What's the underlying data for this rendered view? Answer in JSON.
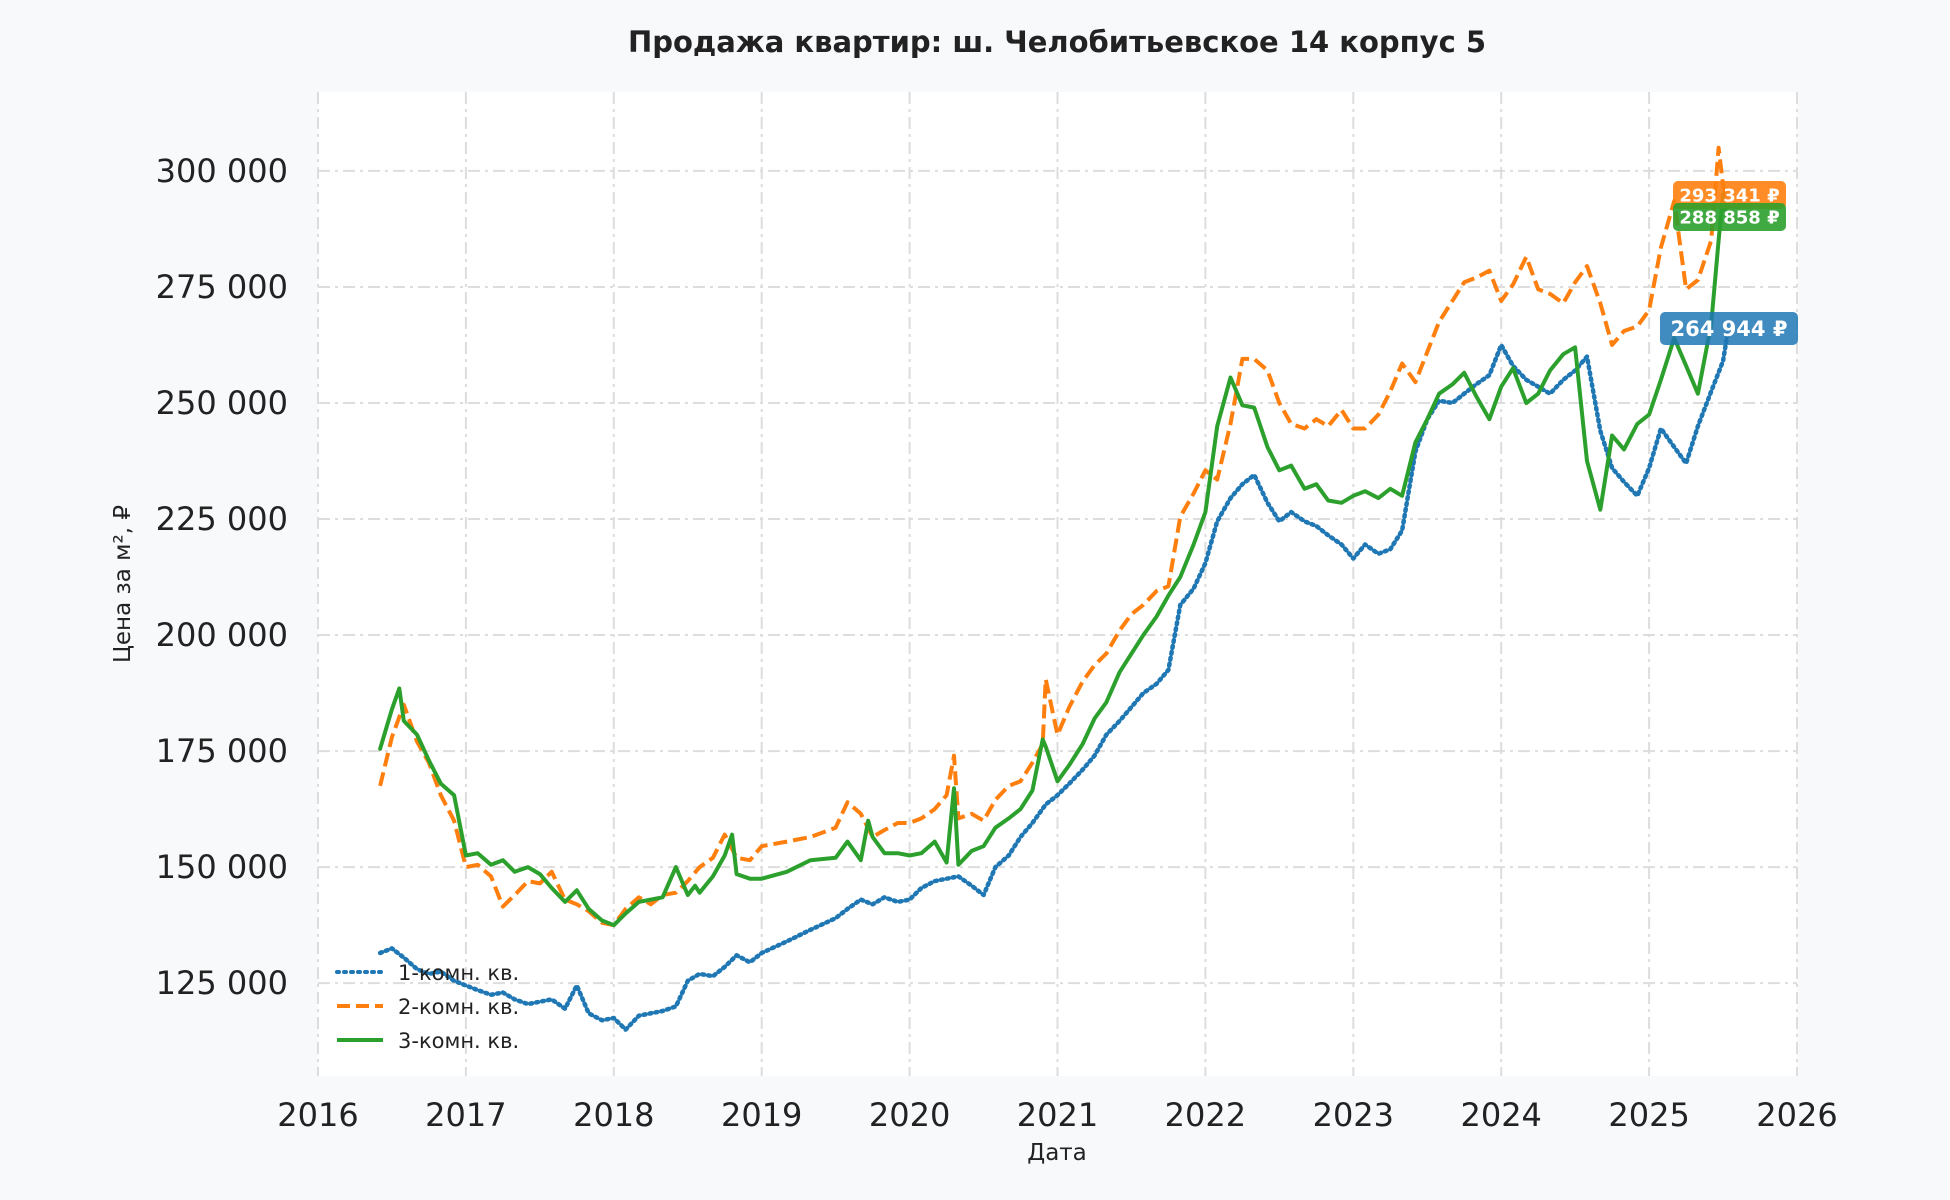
{
  "chart_data": {
    "type": "line",
    "title": "Продажа квартир: ш. Челобитьевское 14 корпус 5",
    "xlabel": "Дата",
    "ylabel": "Цена за м², ₽",
    "xlim": [
      2016,
      2026
    ],
    "ylim": [
      105000,
      317000
    ],
    "x_ticks": [
      2016,
      2017,
      2018,
      2019,
      2020,
      2021,
      2022,
      2023,
      2024,
      2025,
      2026
    ],
    "x_tick_labels": [
      "2016",
      "2017",
      "2018",
      "2019",
      "2020",
      "2021",
      "2022",
      "2023",
      "2024",
      "2025",
      "2026"
    ],
    "y_ticks": [
      125000,
      150000,
      175000,
      200000,
      225000,
      250000,
      275000,
      300000
    ],
    "y_tick_labels": [
      "125 000",
      "150 000",
      "175 000",
      "200 000",
      "225 000",
      "250 000",
      "275 000",
      "300 000"
    ],
    "grid": true,
    "legend_position": "bottom-left",
    "series": [
      {
        "name": "1-комн. кв.",
        "color": "#1f77b4",
        "line_style": "dotted",
        "x": [
          2016.42,
          2016.5,
          2016.58,
          2016.67,
          2016.75,
          2016.83,
          2016.92,
          2017.0,
          2017.08,
          2017.17,
          2017.25,
          2017.33,
          2017.42,
          2017.5,
          2017.58,
          2017.67,
          2017.75,
          2017.83,
          2017.92,
          2018.0,
          2018.08,
          2018.17,
          2018.25,
          2018.33,
          2018.42,
          2018.5,
          2018.58,
          2018.67,
          2018.75,
          2018.83,
          2018.92,
          2019.0,
          2019.17,
          2019.33,
          2019.5,
          2019.58,
          2019.67,
          2019.75,
          2019.83,
          2019.92,
          2020.0,
          2020.08,
          2020.17,
          2020.25,
          2020.33,
          2020.42,
          2020.5,
          2020.58,
          2020.67,
          2020.75,
          2020.83,
          2020.92,
          2021.0,
          2021.08,
          2021.17,
          2021.25,
          2021.33,
          2021.42,
          2021.5,
          2021.58,
          2021.67,
          2021.75,
          2021.83,
          2021.92,
          2022.0,
          2022.08,
          2022.17,
          2022.25,
          2022.33,
          2022.42,
          2022.5,
          2022.58,
          2022.67,
          2022.75,
          2022.83,
          2022.92,
          2023.0,
          2023.08,
          2023.17,
          2023.25,
          2023.33,
          2023.42,
          2023.5,
          2023.58,
          2023.67,
          2023.75,
          2023.83,
          2023.92,
          2024.0,
          2024.08,
          2024.17,
          2024.25,
          2024.33,
          2024.42,
          2024.5,
          2024.58,
          2024.67,
          2024.75,
          2024.83,
          2024.92,
          2025.0,
          2025.08,
          2025.17,
          2025.25,
          2025.33,
          2025.42,
          2025.5,
          2025.53
        ],
        "y": [
          131500,
          132500,
          130500,
          128000,
          127000,
          127500,
          125500,
          124500,
          123500,
          122500,
          123000,
          121500,
          120500,
          121000,
          121500,
          119500,
          124500,
          118500,
          117000,
          117500,
          115000,
          118000,
          118500,
          119000,
          120000,
          125500,
          127000,
          126500,
          128500,
          131000,
          129500,
          131500,
          134000,
          136500,
          139000,
          141000,
          143000,
          142000,
          143500,
          142500,
          143000,
          145500,
          147000,
          147500,
          148000,
          146000,
          144000,
          150000,
          152500,
          156500,
          159500,
          163500,
          165500,
          168000,
          171000,
          174000,
          178500,
          181500,
          184500,
          187500,
          189500,
          192500,
          206500,
          210000,
          215500,
          224500,
          229500,
          232500,
          234500,
          228500,
          224500,
          226500,
          224500,
          223500,
          221500,
          219500,
          216500,
          219500,
          217500,
          218500,
          222500,
          239500,
          246500,
          250500,
          250000,
          252000,
          254000,
          256000,
          262500,
          258000,
          255000,
          253500,
          252000,
          255000,
          257000,
          260000,
          244000,
          236000,
          233000,
          230000,
          236000,
          244500,
          240500,
          237000,
          245000,
          252500,
          259000,
          264944
        ]
      },
      {
        "name": "2-комн. кв.",
        "color": "#ff7f0e",
        "line_style": "dashed",
        "x": [
          2016.42,
          2016.5,
          2016.58,
          2016.67,
          2016.75,
          2016.83,
          2016.92,
          2017.0,
          2017.08,
          2017.17,
          2017.25,
          2017.33,
          2017.42,
          2017.5,
          2017.58,
          2017.67,
          2017.75,
          2017.83,
          2017.92,
          2018.0,
          2018.08,
          2018.17,
          2018.25,
          2018.33,
          2018.42,
          2018.5,
          2018.58,
          2018.67,
          2018.75,
          2018.83,
          2018.92,
          2019.0,
          2019.17,
          2019.33,
          2019.5,
          2019.58,
          2019.67,
          2019.75,
          2019.83,
          2019.92,
          2020.0,
          2020.08,
          2020.17,
          2020.25,
          2020.3,
          2020.33,
          2020.42,
          2020.5,
          2020.58,
          2020.67,
          2020.75,
          2020.83,
          2020.9,
          2020.92,
          2021.0,
          2021.08,
          2021.17,
          2021.25,
          2021.33,
          2021.42,
          2021.5,
          2021.58,
          2021.67,
          2021.75,
          2021.83,
          2021.92,
          2022.0,
          2022.08,
          2022.17,
          2022.25,
          2022.33,
          2022.42,
          2022.5,
          2022.58,
          2022.67,
          2022.75,
          2022.83,
          2022.92,
          2023.0,
          2023.08,
          2023.17,
          2023.25,
          2023.33,
          2023.42,
          2023.5,
          2023.58,
          2023.67,
          2023.75,
          2023.83,
          2023.92,
          2024.0,
          2024.08,
          2024.17,
          2024.25,
          2024.33,
          2024.42,
          2024.5,
          2024.58,
          2024.67,
          2024.75,
          2024.83,
          2024.92,
          2025.0,
          2025.08,
          2025.17,
          2025.25,
          2025.33,
          2025.42,
          2025.47,
          2025.5,
          2025.53
        ],
        "y": [
          167500,
          178000,
          185000,
          177000,
          172500,
          165500,
          160000,
          150000,
          150500,
          148000,
          141500,
          144000,
          147000,
          146500,
          149000,
          143000,
          142000,
          140500,
          138000,
          137500,
          141000,
          143500,
          142000,
          144000,
          144500,
          147000,
          150000,
          152000,
          157000,
          152000,
          151500,
          154500,
          155500,
          156500,
          158500,
          164000,
          161500,
          156500,
          158000,
          159500,
          159500,
          160500,
          162500,
          165500,
          174000,
          160500,
          161500,
          160000,
          164500,
          167500,
          168500,
          172500,
          176500,
          190500,
          178500,
          184500,
          190000,
          193500,
          196000,
          201000,
          204500,
          206500,
          209500,
          210500,
          225500,
          230500,
          235500,
          233500,
          245500,
          259500,
          259500,
          257000,
          250000,
          245500,
          244500,
          246500,
          245000,
          248500,
          244500,
          244500,
          247500,
          252500,
          258500,
          254500,
          261000,
          267500,
          272000,
          276000,
          277000,
          278500,
          272000,
          275500,
          281500,
          274500,
          273500,
          271500,
          276000,
          279500,
          271500,
          262500,
          265500,
          266500,
          270000,
          283500,
          293500,
          274500,
          276500,
          285000,
          305000,
          297000,
          293341
        ]
      },
      {
        "name": "3-комн. кв.",
        "color": "#2ca02c",
        "line_style": "solid",
        "x": [
          2016.42,
          2016.5,
          2016.55,
          2016.58,
          2016.67,
          2016.75,
          2016.83,
          2016.92,
          2017.0,
          2017.08,
          2017.17,
          2017.25,
          2017.33,
          2017.42,
          2017.5,
          2017.58,
          2017.67,
          2017.75,
          2017.83,
          2017.92,
          2018.0,
          2018.08,
          2018.17,
          2018.25,
          2018.33,
          2018.42,
          2018.5,
          2018.55,
          2018.58,
          2018.67,
          2018.75,
          2018.8,
          2018.83,
          2018.92,
          2019.0,
          2019.17,
          2019.33,
          2019.5,
          2019.58,
          2019.67,
          2019.72,
          2019.75,
          2019.83,
          2019.92,
          2020.0,
          2020.08,
          2020.17,
          2020.25,
          2020.3,
          2020.33,
          2020.42,
          2020.5,
          2020.58,
          2020.67,
          2020.75,
          2020.83,
          2020.9,
          2020.92,
          2021.0,
          2021.08,
          2021.17,
          2021.25,
          2021.33,
          2021.42,
          2021.5,
          2021.58,
          2021.67,
          2021.75,
          2021.83,
          2021.92,
          2022.0,
          2022.08,
          2022.17,
          2022.25,
          2022.33,
          2022.42,
          2022.5,
          2022.58,
          2022.67,
          2022.75,
          2022.83,
          2022.92,
          2023.0,
          2023.08,
          2023.17,
          2023.25,
          2023.33,
          2023.42,
          2023.5,
          2023.58,
          2023.67,
          2023.75,
          2023.83,
          2023.92,
          2024.0,
          2024.08,
          2024.17,
          2024.25,
          2024.33,
          2024.42,
          2024.5,
          2024.58,
          2024.67,
          2024.75,
          2024.83,
          2024.92,
          2025.0,
          2025.08,
          2025.17,
          2025.25,
          2025.33,
          2025.42,
          2025.47,
          2025.5,
          2025.53
        ],
        "y": [
          175500,
          184000,
          188500,
          181500,
          178500,
          173000,
          168000,
          165500,
          152500,
          153000,
          150500,
          151500,
          149000,
          150000,
          148500,
          145500,
          142500,
          145000,
          141000,
          138500,
          137500,
          140000,
          142500,
          143000,
          143500,
          150000,
          144000,
          146000,
          144500,
          148000,
          152500,
          157000,
          148500,
          147500,
          147500,
          149000,
          151500,
          152000,
          155500,
          151500,
          160000,
          156500,
          153000,
          153000,
          152500,
          153000,
          155500,
          151000,
          167000,
          150500,
          153500,
          154500,
          158500,
          160500,
          162500,
          166500,
          177500,
          176000,
          168500,
          172000,
          176500,
          182000,
          185500,
          192000,
          196000,
          200000,
          204000,
          208500,
          212500,
          219500,
          226500,
          245000,
          255500,
          249500,
          249000,
          240500,
          235500,
          236500,
          231500,
          232500,
          229000,
          228500,
          230000,
          231000,
          229500,
          231500,
          230000,
          241500,
          246500,
          252000,
          254000,
          256500,
          251500,
          246500,
          253500,
          257500,
          250000,
          252000,
          257000,
          260500,
          262000,
          237500,
          227000,
          243000,
          240000,
          245500,
          247500,
          255000,
          264000,
          258000,
          252000,
          267000,
          285000,
          295000,
          288858
        ]
      }
    ],
    "badges": [
      {
        "series": "2-комн. кв.",
        "label": "293 341 ₽",
        "value": 293341,
        "color": "#ff7f0e"
      },
      {
        "series": "3-комн. кв.",
        "label": "288 858 ₽",
        "value": 288858,
        "color": "#2ca02c"
      },
      {
        "series": "1-комн. кв.",
        "label": "264 944 ₽",
        "value": 264944,
        "color": "#1f77b4"
      }
    ]
  }
}
